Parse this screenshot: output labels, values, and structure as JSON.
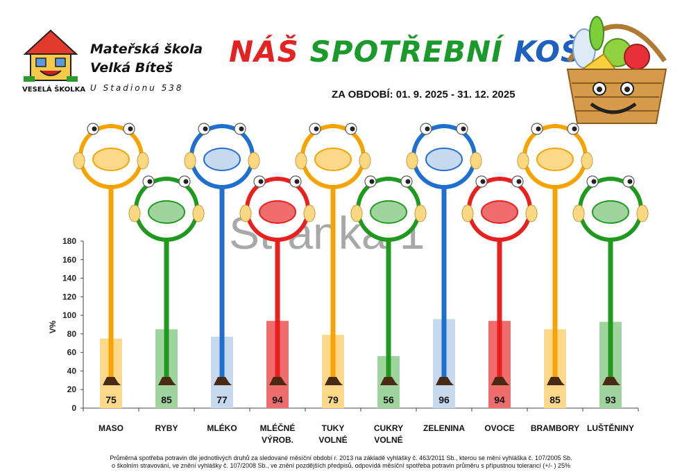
{
  "header": {
    "school_line1": "Mateřská škola",
    "school_line2": "Velká Bíteš",
    "school_line3": "U Stadionu 538",
    "logo_label": "VESELÁ ŠKOLKA",
    "title_word1": "NÁŠ",
    "title_word2": "SPOTŘEBNÍ",
    "title_word3": "KOŠ",
    "period": "ZA OBDOBÍ:  01. 9. 2025 - 31. 12. 2025"
  },
  "watermark": "Stránka 1",
  "footnote_line1": "Průměrná spotřeba potravin dle jednotlivých druhů za sledované měsíční období r. 2013 na základě vyhlášky č. 463/2011 Sb., kterou se mění vyhláška č. 107/2005 Sb.",
  "footnote_line2": "o školním stravování, ve znění vyhlášky č. 107/2008 Sb., ve znění pozdějších předpisů, odpovídá měsíční spotřeba potravin průměru s přípustnou tolerancí (+/- ) 25%",
  "colors": {
    "orange": "#f5a300",
    "green": "#1f9a1f",
    "blue": "#1f6fcf",
    "red": "#e8201e"
  },
  "chart_data": {
    "type": "bar",
    "ylabel": "V%",
    "xlabel": "",
    "ylim": [
      0,
      180
    ],
    "yticks": [
      0,
      20,
      40,
      60,
      80,
      100,
      120,
      140,
      160,
      180
    ],
    "categories": [
      "MASO",
      "RYBY",
      "MLÉKO",
      "MLÉČNÉ VÝROB.",
      "TUKY VOLNÉ",
      "CUKRY VOLNÉ",
      "ZELENINA",
      "OVOCE",
      "BRAMBORY",
      "LUŠTĚNINY"
    ],
    "category_lines": [
      [
        "MASO"
      ],
      [
        "RYBY"
      ],
      [
        "MLÉKO"
      ],
      [
        "MLÉČNÉ",
        "VÝROB."
      ],
      [
        "TUKY",
        "VOLNÉ"
      ],
      [
        "CUKRY",
        "VOLNÉ"
      ],
      [
        "ZELENINA"
      ],
      [
        "OVOCE"
      ],
      [
        "BRAMBORY"
      ],
      [
        "LUŠTĚNINY"
      ]
    ],
    "values": [
      75,
      85,
      77,
      94,
      79,
      56,
      96,
      94,
      85,
      93
    ],
    "bar_colors": [
      "#fcd98a",
      "#9fd49f",
      "#c6d9ef",
      "#ef6d6d",
      "#fcd98a",
      "#9fd49f",
      "#c6d9ef",
      "#ef6d6d",
      "#fcd98a",
      "#9fd49f"
    ],
    "stick_colors": [
      "#f5a300",
      "#1f9a1f",
      "#1f6fcf",
      "#e8201e",
      "#f5a300",
      "#1f9a1f",
      "#1f6fcf",
      "#e8201e",
      "#f5a300",
      "#1f9a1f"
    ],
    "icons": [
      "meat-icon",
      "fish-icon",
      "milk-carton-icon",
      "cheese-icon",
      "oil-bottle-icon",
      "candy-icon",
      "carrot-icon",
      "apple-icon",
      "potato-icon",
      "beans-icon"
    ],
    "grid": false
  }
}
